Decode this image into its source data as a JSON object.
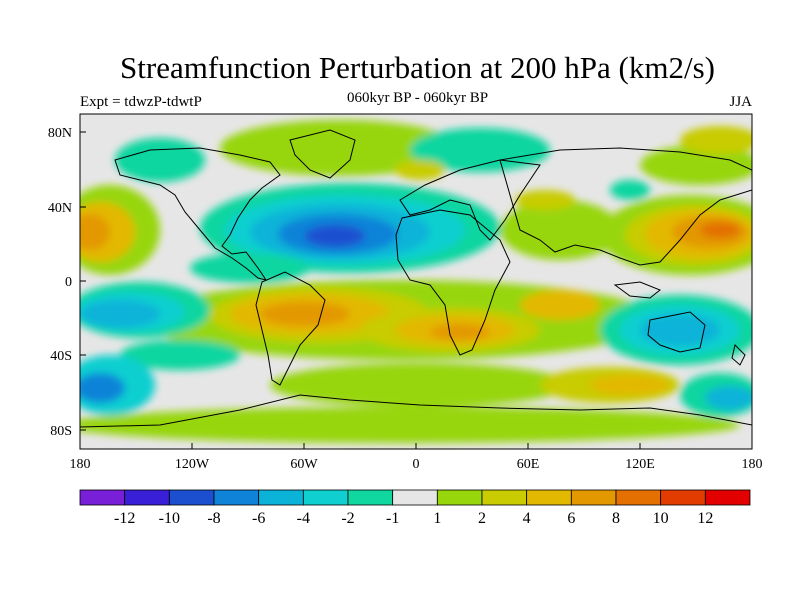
{
  "title": "Streamfunction Perturbation at 200 hPa (km2/s)",
  "subtitle": "060kyr BP - 060kyr BP",
  "left_label": "Expt = tdwzP-tdwtP",
  "right_label": "JJA",
  "y_ticks": [
    "80N",
    "40N",
    "0",
    "40S",
    "80S"
  ],
  "x_ticks": [
    "180",
    "120W",
    "60W",
    "0",
    "60E",
    "120E",
    "180"
  ],
  "colorbar": {
    "colors": [
      "#7a1fd8",
      "#3a1fd8",
      "#1c4fd0",
      "#0e83d8",
      "#0cb3d8",
      "#0fcfd0",
      "#10d6a0",
      "#e6e6e6",
      "#97d60a",
      "#c8cc00",
      "#e3b800",
      "#e39800",
      "#e37000",
      "#e33c00",
      "#e30000"
    ],
    "labels": [
      "-12",
      "-10",
      "-8",
      "-6",
      "-4",
      "-2",
      "-1",
      "1",
      "2",
      "4",
      "6",
      "8",
      "10",
      "12"
    ]
  }
}
